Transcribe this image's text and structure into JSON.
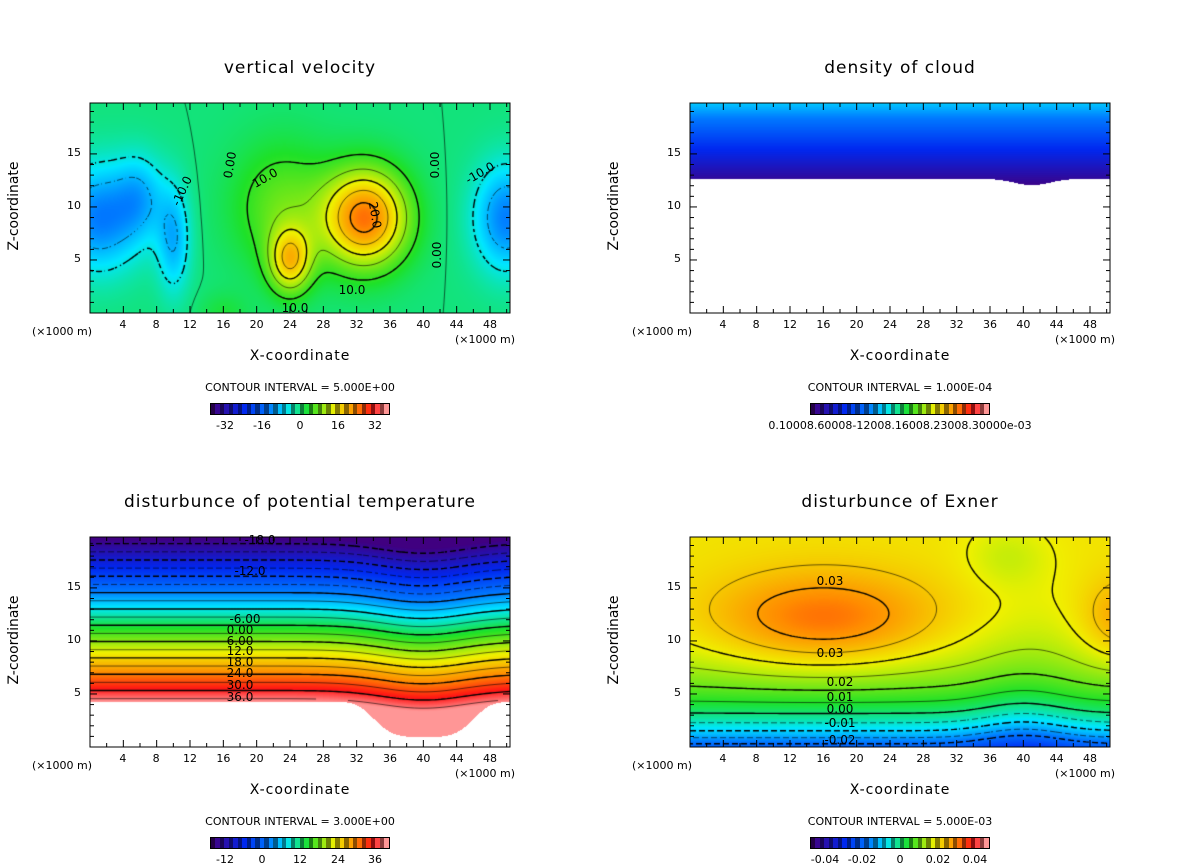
{
  "x_label": "X-coordinate",
  "y_label": "Z-coordinate",
  "unit_label": "(×1000 m)",
  "x_ticks": [
    "4",
    "8",
    "12",
    "16",
    "20",
    "24",
    "28",
    "32",
    "36",
    "40",
    "44",
    "48"
  ],
  "y_ticks": [
    "5",
    "10",
    "15"
  ],
  "chart_data": [
    {
      "type": "heatmap",
      "title": "vertical velocity",
      "xlabel": "X-coordinate",
      "ylabel": "Z-coordinate",
      "xlim": [
        0,
        50.4
      ],
      "ylim": [
        0,
        19.8
      ],
      "contour_interval": "CONTOUR INTERVAL = 5.000E+00",
      "colorbar_ticks": [
        "-32",
        "-16",
        "0",
        "16",
        "32"
      ],
      "colorbar_range": [
        -40,
        40
      ],
      "contour_labels": [
        "0.00",
        "10.0",
        "-10.0",
        "0.00",
        "10.0",
        "20.0",
        "10.0",
        "0.00",
        "-10.0"
      ]
    },
    {
      "type": "heatmap",
      "title": "density of cloud",
      "xlabel": "X-coordinate",
      "ylabel": "Z-coordinate",
      "xlim": [
        0,
        50.4
      ],
      "ylim": [
        0,
        19.8
      ],
      "contour_interval": "CONTOUR INTERVAL = 1.000E-04",
      "colorbar_ticks": [
        "0.10000e-03",
        "0.60000e-03",
        "1.1000e-03",
        "1.6000e-03",
        "2.1000e-03",
        "2.6000e-03",
        "3.1000e-03"
      ],
      "colorbar_ticks_rendered": "0.10008.60008-12008.16008.23008.30000e-03",
      "colorbar_range": [
        0.0001,
        0.0033
      ],
      "contour_labels": []
    },
    {
      "type": "heatmap",
      "title": "disturbunce of potential temperature",
      "xlabel": "X-coordinate",
      "ylabel": "Z-coordinate",
      "xlim": [
        0,
        50.4
      ],
      "ylim": [
        0,
        19.8
      ],
      "contour_interval": "CONTOUR INTERVAL = 3.000E+00",
      "colorbar_ticks": [
        "-12",
        "0",
        "12",
        "24",
        "36"
      ],
      "colorbar_range": [
        -20,
        40
      ],
      "contour_labels": [
        "-18.0",
        "-12.0",
        "-6.00",
        "0.00",
        "6.00",
        "12.0",
        "18.0",
        "24.0",
        "30.0",
        "36.0"
      ]
    },
    {
      "type": "heatmap",
      "title": "disturbunce of Exner",
      "xlabel": "X-coordinate",
      "ylabel": "Z-coordinate",
      "xlim": [
        0,
        50.4
      ],
      "ylim": [
        0,
        19.8
      ],
      "contour_interval": "CONTOUR INTERVAL = 5.000E-03",
      "colorbar_ticks": [
        "-0.04",
        "-0.02",
        "0",
        "0.02",
        "0.04"
      ],
      "colorbar_range": [
        -0.05,
        0.05
      ],
      "contour_labels": [
        "0.03",
        "0.03",
        "0.02",
        "0.01",
        "0.00",
        "-0.01",
        "-0.02"
      ]
    }
  ]
}
